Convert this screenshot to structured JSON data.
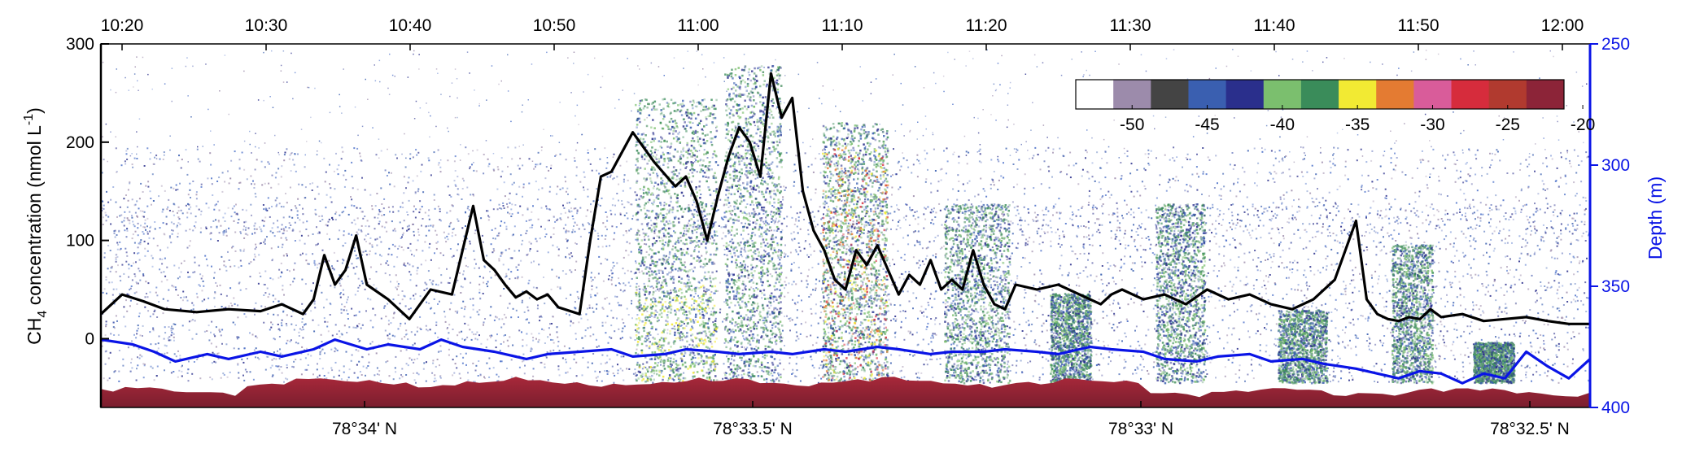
{
  "chart_data": {
    "type": "line",
    "background": "echogram",
    "top_axis": {
      "ticks": [
        "10:20",
        "10:30",
        "10:40",
        "10:50",
        "11:00",
        "11:10",
        "11:20",
        "11:30",
        "11:40",
        "11:50",
        "12:00"
      ]
    },
    "bottom_axis": {
      "ticks": [
        "78°34' N",
        "78°33.5' N",
        "78°33' N",
        "78°32.5' N"
      ]
    },
    "left_axis": {
      "label_main": "CH",
      "label_sub": "4",
      "label_rest": " concentration (nmol L",
      "label_sup": "-1",
      "label_end": ")",
      "ylim": [
        -70,
        300
      ],
      "ticks": [
        300,
        200,
        100,
        0
      ],
      "tick_labels": [
        "300",
        "200",
        "100",
        "0"
      ]
    },
    "right_axis": {
      "label": "Depth (m)",
      "ylim": [
        250,
        400
      ],
      "ticks": [
        250,
        300,
        350,
        400
      ],
      "tick_labels": [
        "250",
        "300",
        "350",
        "400"
      ],
      "inverted": true
    },
    "colorbar": {
      "tick_labels": [
        "-50",
        "-45",
        "-40",
        "-35",
        "-30",
        "-25",
        "-20"
      ],
      "colors": [
        "#ffffff",
        "#9c8bab",
        "#444444",
        "#3a5fb0",
        "#2a2f8c",
        "#7bbf6e",
        "#3a8c5a",
        "#f2ea33",
        "#e47b32",
        "#d95c9a",
        "#d62c3c",
        "#b13a2f",
        "#8c2438"
      ],
      "placement": "top-right"
    },
    "series": [
      {
        "color": "#000000",
        "axis": "left",
        "t": [
          0,
          2,
          4,
          6,
          9,
          12,
          15,
          17,
          19,
          20,
          21,
          22,
          23,
          24,
          25,
          27,
          29,
          31,
          33,
          35,
          36,
          37,
          38,
          39,
          40,
          41,
          42,
          43,
          45,
          46,
          47,
          48,
          50,
          52,
          54,
          55,
          56,
          57,
          58,
          59,
          60,
          61,
          62,
          63,
          64,
          65,
          66,
          67,
          68,
          69,
          70,
          71,
          72,
          73,
          74,
          75,
          76,
          77,
          78,
          79,
          80,
          81,
          82,
          83,
          84,
          85,
          86,
          88,
          90,
          92,
          93,
          94,
          95,
          96,
          98,
          100,
          102,
          104,
          106,
          108,
          110,
          112,
          114,
          116,
          118,
          119,
          120,
          121,
          122,
          123,
          124,
          125,
          126,
          128,
          130,
          132,
          134,
          136,
          138,
          140
        ],
        "values": [
          25,
          45,
          38,
          30,
          27,
          30,
          28,
          35,
          25,
          40,
          85,
          55,
          70,
          105,
          55,
          40,
          20,
          50,
          45,
          135,
          80,
          70,
          55,
          42,
          48,
          40,
          45,
          32,
          25,
          100,
          165,
          170,
          210,
          180,
          155,
          165,
          140,
          100,
          145,
          185,
          215,
          200,
          165,
          270,
          225,
          245,
          150,
          110,
          90,
          60,
          50,
          90,
          75,
          95,
          70,
          45,
          65,
          55,
          80,
          50,
          60,
          50,
          90,
          55,
          35,
          30,
          55,
          50,
          55,
          45,
          40,
          35,
          45,
          50,
          40,
          45,
          35,
          50,
          40,
          45,
          35,
          30,
          40,
          60,
          120,
          40,
          25,
          20,
          18,
          22,
          20,
          30,
          22,
          25,
          18,
          20,
          22,
          18,
          15,
          15
        ]
      },
      {
        "color": "#0a14e6",
        "axis": "right",
        "t": [
          0,
          3,
          5,
          7,
          10,
          12,
          15,
          17,
          20,
          22,
          25,
          27,
          30,
          32,
          34,
          37,
          40,
          42,
          45,
          48,
          50,
          53,
          55,
          58,
          60,
          63,
          65,
          68,
          70,
          73,
          75,
          78,
          80,
          83,
          85,
          88,
          90,
          93,
          95,
          98,
          100,
          103,
          105,
          108,
          110,
          113,
          115,
          118,
          120,
          122,
          124,
          126,
          128,
          130,
          132,
          134,
          136,
          138,
          140
        ],
        "values": [
          372,
          374,
          377,
          381,
          378,
          380,
          377,
          379,
          376,
          372,
          376,
          374,
          376,
          372,
          375,
          377,
          380,
          378,
          377,
          376,
          379,
          378,
          376,
          377,
          378,
          377,
          378,
          376,
          377,
          375,
          376,
          378,
          377,
          377,
          376,
          377,
          378,
          375,
          376,
          377,
          380,
          381,
          379,
          378,
          381,
          380,
          382,
          384,
          386,
          388,
          385,
          386,
          390,
          386,
          388,
          377,
          383,
          388,
          380
        ]
      }
    ]
  }
}
